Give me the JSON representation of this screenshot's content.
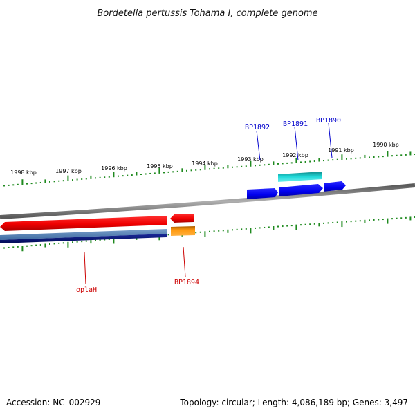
{
  "title": "Bordetella pertussis Tohama I, complete genome",
  "accession": "Accession: NC_002929",
  "summary": "Topology: circular; Length: 4,086,189 bp; Genes: 3,497",
  "colors": {
    "backbone": "#8a8a8a",
    "ticks": "#1f8a1f",
    "forward_label": "#0000cc",
    "reverse_label": "#cc0000"
  },
  "tick_labels": [
    "1998 kbp",
    "1997 kbp",
    "1996 kbp",
    "1995 kbp",
    "1994 kbp",
    "1993 kbp",
    "1992 kbp",
    "1991 kbp",
    "1990 kbp"
  ],
  "genes_forward": [
    {
      "label": "BP1892",
      "color": "#0000ee"
    },
    {
      "label": "BP1891",
      "color": "#0000ee"
    },
    {
      "label": "BP1890",
      "color": "#0000ee"
    }
  ],
  "genes_reverse": [
    {
      "label": "oplaH",
      "color": "#ee0000"
    },
    {
      "label": "BP1894",
      "color": "#ee0000"
    }
  ],
  "features": [
    {
      "name": "BP1892-cds",
      "color": "#0000ee",
      "strand": "forward"
    },
    {
      "name": "BP1891-cds",
      "color": "#0000ee",
      "strand": "forward"
    },
    {
      "name": "BP1890-cds",
      "color": "#0000ee",
      "strand": "forward"
    },
    {
      "name": "BP1891-gene",
      "color": "#00c8c8",
      "strand": "forward"
    },
    {
      "name": "oplaH-gene",
      "color": "#ee0000",
      "strand": "reverse"
    },
    {
      "name": "BP1894-gene",
      "color": "#ee0000",
      "strand": "reverse"
    },
    {
      "name": "oplaH-cds",
      "color": "#4a7ab0",
      "strand": "reverse"
    },
    {
      "name": "oplaH-cds-inner",
      "color": "#0a1a7a",
      "strand": "reverse"
    },
    {
      "name": "BP1894-cds",
      "color": "#ee8800",
      "strand": "reverse"
    }
  ]
}
